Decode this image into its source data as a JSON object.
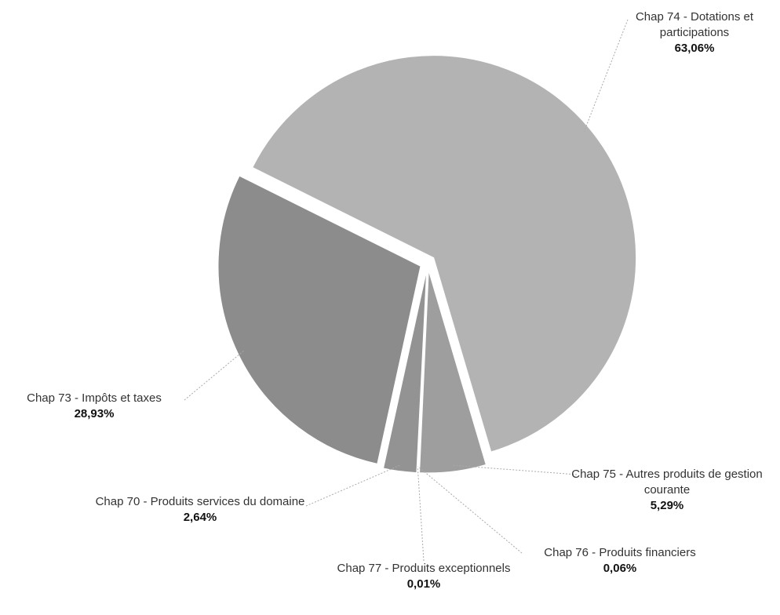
{
  "chart_data": {
    "type": "pie",
    "categories": [
      "Chap 74 - Dotations et participations",
      "Chap 75 - Autres produits de gestion courante",
      "Chap 76 - Produits financiers",
      "Chap 77 - Produits exceptionnels",
      "Chap 70 - Produits services du domaine",
      "Chap 73 - Impôts et taxes"
    ],
    "values": [
      63.06,
      5.29,
      0.06,
      0.01,
      2.64,
      28.93
    ],
    "value_labels": [
      "63,06%",
      "5,29%",
      "0,06%",
      "0,01%",
      "2,64%",
      "28,93%"
    ],
    "colors": [
      "#b3b3b3",
      "#9e9e9e",
      "#9a9a9a",
      "#999999",
      "#939393",
      "#8c8c8c"
    ]
  }
}
